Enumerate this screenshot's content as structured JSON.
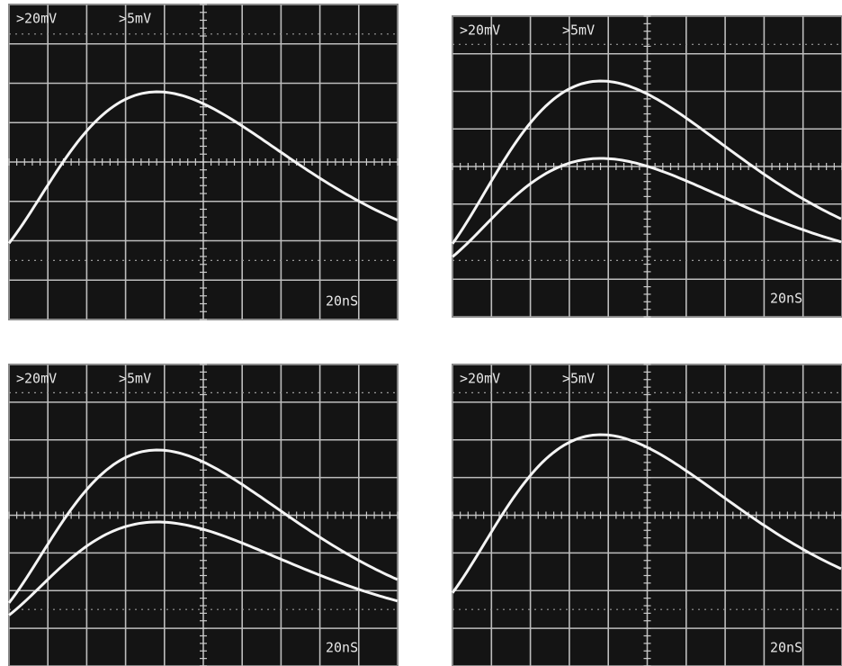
{
  "panels": [
    {
      "channel_1": ">20mV",
      "channel_2": ">5mV",
      "timebase": "20nS"
    },
    {
      "channel_1": ">20mV",
      "channel_2": ">5mV",
      "timebase": "20nS"
    },
    {
      "channel_1": ">20mV",
      "channel_2": ">5mV",
      "timebase": "20nS"
    },
    {
      "channel_1": ">20mV",
      "channel_2": ">5mV",
      "timebase": "20nS"
    }
  ]
}
